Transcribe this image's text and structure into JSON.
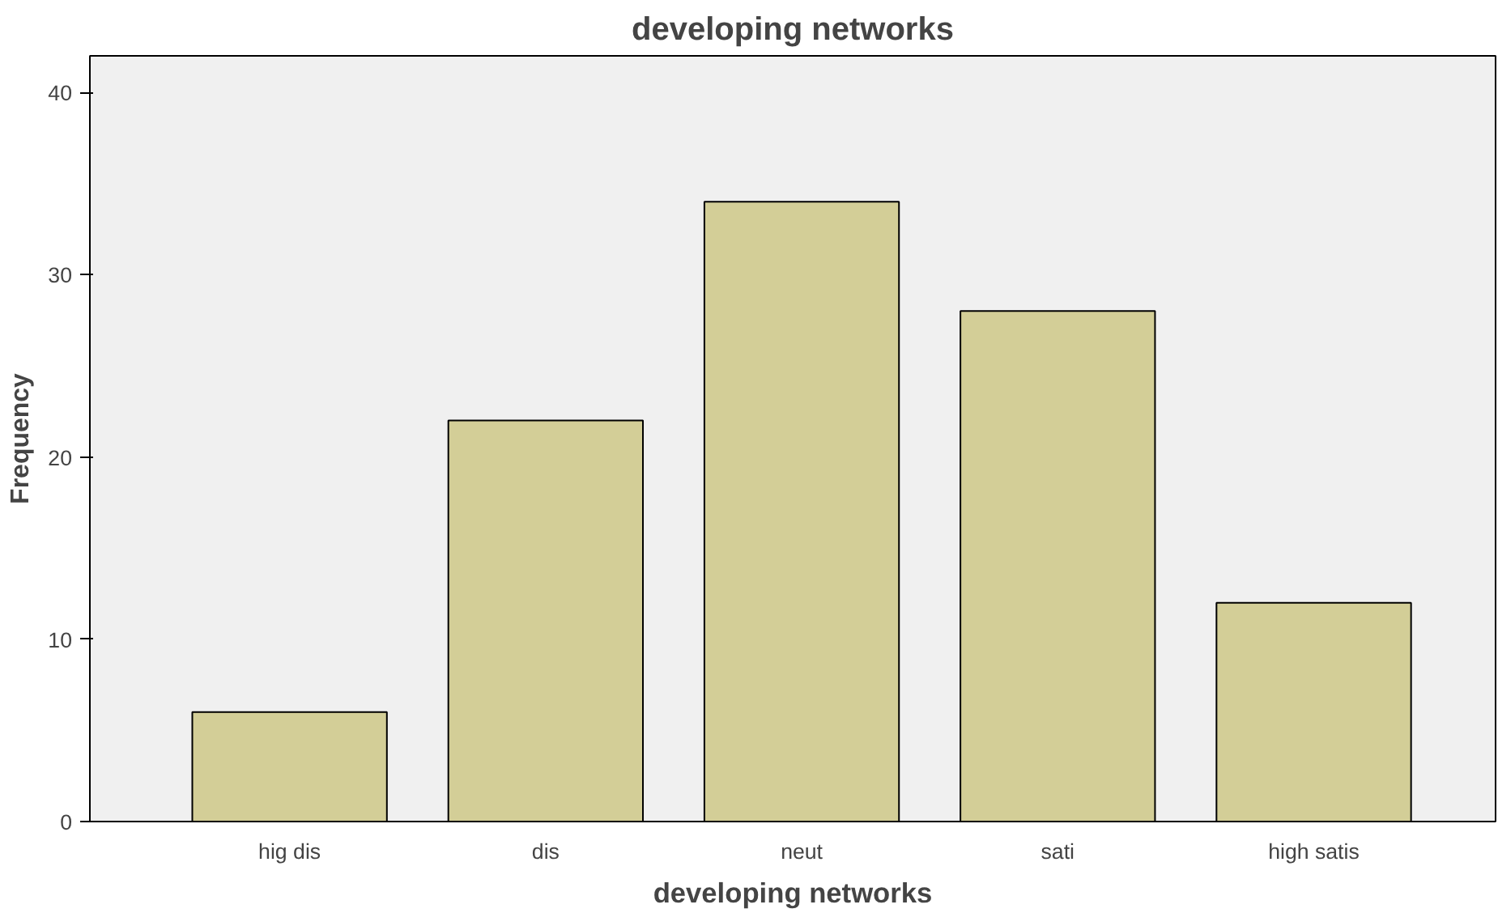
{
  "chart_data": {
    "type": "bar",
    "title": "developing networks",
    "xlabel": "developing networks",
    "ylabel": "Frequency",
    "categories": [
      "hig dis",
      "dis",
      "neut",
      "sati",
      "high satis"
    ],
    "values": [
      6,
      22,
      34,
      28,
      12
    ],
    "color": "#d3ce97",
    "ylim": [
      0,
      42
    ],
    "yticks": [
      0,
      10,
      20,
      30,
      40
    ],
    "grid": false
  }
}
